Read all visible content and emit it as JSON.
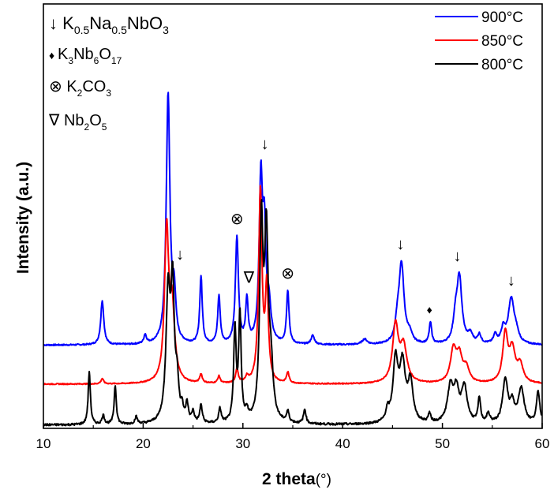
{
  "chart_data": {
    "type": "line",
    "xlabel": "2 theta",
    "xlabel_unit": "(°)",
    "ylabel": "Intensity (a.u.)",
    "xlim": [
      10,
      60
    ],
    "xticks": [
      "10",
      "20",
      "30",
      "40",
      "50",
      "60"
    ],
    "y_ticks_shown": false,
    "grid": false,
    "legend": {
      "position": "top-right",
      "entries": [
        "900°C",
        "850°C",
        "800°C"
      ]
    },
    "phase_key": [
      {
        "symbol": "↓",
        "formula": "K0.5Na0.5NbO3"
      },
      {
        "symbol": "♦",
        "formula": "K3Nb6O17"
      },
      {
        "symbol": "⊗",
        "formula": "K2CO3"
      },
      {
        "symbol": "∇",
        "formula": "Nb2O5"
      }
    ],
    "annotations": [
      {
        "symbol": "↓",
        "x": 23.7,
        "series": "900°C"
      },
      {
        "symbol": "↓",
        "x": 32.2,
        "series": "900°C"
      },
      {
        "symbol": "↓",
        "x": 45.8,
        "series": "900°C"
      },
      {
        "symbol": "↓",
        "x": 51.5,
        "series": "900°C"
      },
      {
        "symbol": "↓",
        "x": 56.9,
        "series": "900°C"
      },
      {
        "symbol": "⊗",
        "x": 29.4,
        "series": "900°C"
      },
      {
        "symbol": "⊗",
        "x": 34.5,
        "series": "900°C"
      },
      {
        "symbol": "∇",
        "x": 30.6,
        "series": "900°C"
      },
      {
        "symbol": "♦",
        "x": 48.7,
        "series": "900°C"
      }
    ],
    "series": [
      {
        "name": "900°C",
        "color": "#0000ff",
        "baseline": 0.3,
        "noise": 0.004,
        "peaks": [
          [
            15.9,
            0.25,
            0.18
          ],
          [
            20.2,
            0.05,
            0.15
          ],
          [
            22.5,
            1.4,
            0.22
          ],
          [
            23.1,
            0.25,
            0.2
          ],
          [
            25.8,
            0.38,
            0.15
          ],
          [
            27.6,
            0.27,
            0.15
          ],
          [
            29.4,
            0.6,
            0.18
          ],
          [
            30.4,
            0.24,
            0.15
          ],
          [
            31.8,
            0.9,
            0.2
          ],
          [
            32.15,
            0.55,
            0.18
          ],
          [
            32.6,
            0.2,
            0.25
          ],
          [
            34.5,
            0.3,
            0.15
          ],
          [
            37.0,
            0.05,
            0.2
          ],
          [
            42.2,
            0.03,
            0.3
          ],
          [
            45.5,
            0.1,
            0.25
          ],
          [
            45.9,
            0.44,
            0.3
          ],
          [
            46.7,
            0.05,
            0.3
          ],
          [
            48.8,
            0.12,
            0.15
          ],
          [
            51.3,
            0.12,
            0.25
          ],
          [
            51.7,
            0.37,
            0.3
          ],
          [
            52.8,
            0.05,
            0.3
          ],
          [
            53.7,
            0.05,
            0.2
          ],
          [
            55.3,
            0.05,
            0.2
          ],
          [
            56.1,
            0.08,
            0.25
          ],
          [
            56.9,
            0.25,
            0.35
          ],
          [
            57.4,
            0.05,
            0.3
          ]
        ]
      },
      {
        "name": "850°C",
        "color": "#ff0000",
        "baseline": 0.08,
        "noise": 0.003,
        "peaks": [
          [
            15.9,
            0.03,
            0.15
          ],
          [
            22.35,
            0.84,
            0.25
          ],
          [
            22.9,
            0.4,
            0.3
          ],
          [
            25.8,
            0.05,
            0.15
          ],
          [
            27.6,
            0.04,
            0.15
          ],
          [
            29.4,
            0.08,
            0.15
          ],
          [
            30.4,
            0.03,
            0.15
          ],
          [
            31.75,
            1.08,
            0.2
          ],
          [
            32.4,
            0.53,
            0.18
          ],
          [
            34.5,
            0.06,
            0.15
          ],
          [
            45.3,
            0.32,
            0.35
          ],
          [
            46.1,
            0.2,
            0.4
          ],
          [
            51.1,
            0.18,
            0.35
          ],
          [
            51.7,
            0.14,
            0.35
          ],
          [
            52.4,
            0.08,
            0.35
          ],
          [
            56.3,
            0.27,
            0.3
          ],
          [
            57.0,
            0.18,
            0.35
          ],
          [
            57.8,
            0.1,
            0.35
          ]
        ]
      },
      {
        "name": "800°C",
        "color": "#000000",
        "baseline": -0.15,
        "noise": 0.006,
        "peaks": [
          [
            14.6,
            0.3,
            0.13
          ],
          [
            16.0,
            0.05,
            0.15
          ],
          [
            17.2,
            0.22,
            0.13
          ],
          [
            19.3,
            0.04,
            0.15
          ],
          [
            22.5,
            0.72,
            0.25
          ],
          [
            22.95,
            0.72,
            0.2
          ],
          [
            23.4,
            0.2,
            0.2
          ],
          [
            23.9,
            0.07,
            0.12
          ],
          [
            24.4,
            0.1,
            0.15
          ],
          [
            25.0,
            0.06,
            0.15
          ],
          [
            25.8,
            0.1,
            0.15
          ],
          [
            27.7,
            0.08,
            0.15
          ],
          [
            29.2,
            0.52,
            0.15
          ],
          [
            29.7,
            0.6,
            0.15
          ],
          [
            30.4,
            0.05,
            0.15
          ],
          [
            31.85,
            1.08,
            0.2
          ],
          [
            32.35,
            1.0,
            0.22
          ],
          [
            32.8,
            0.28,
            0.25
          ],
          [
            34.5,
            0.06,
            0.15
          ],
          [
            36.2,
            0.08,
            0.15
          ],
          [
            44.5,
            0.06,
            0.2
          ],
          [
            45.3,
            0.34,
            0.3
          ],
          [
            46.0,
            0.32,
            0.35
          ],
          [
            46.8,
            0.22,
            0.3
          ],
          [
            48.7,
            0.05,
            0.15
          ],
          [
            50.8,
            0.2,
            0.35
          ],
          [
            51.4,
            0.17,
            0.3
          ],
          [
            52.2,
            0.2,
            0.35
          ],
          [
            53.7,
            0.14,
            0.15
          ],
          [
            54.6,
            0.05,
            0.2
          ],
          [
            56.3,
            0.25,
            0.3
          ],
          [
            57.0,
            0.1,
            0.25
          ],
          [
            57.9,
            0.2,
            0.35
          ],
          [
            59.6,
            0.18,
            0.2
          ]
        ]
      }
    ]
  }
}
